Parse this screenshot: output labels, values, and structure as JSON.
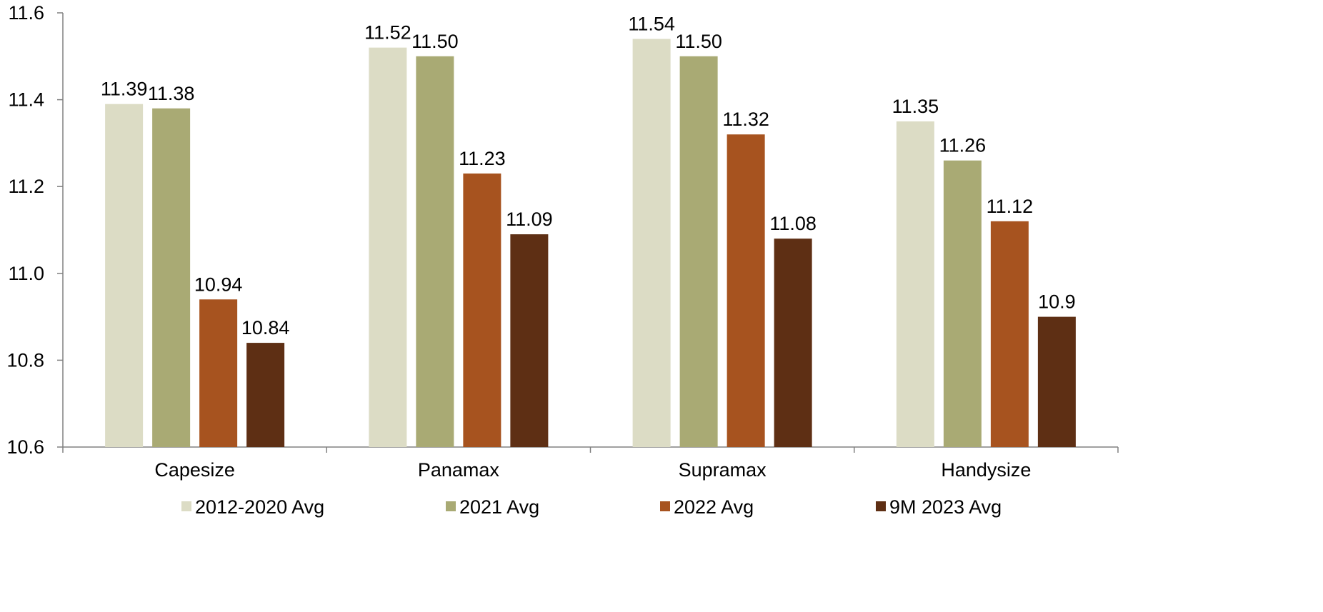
{
  "chart_data": {
    "type": "bar",
    "categories": [
      "Capesize",
      "Panamax",
      "Supramax",
      "Handysize"
    ],
    "series": [
      {
        "name": "2012-2020 Avg",
        "color": "#dcdcc5",
        "values": [
          11.39,
          11.52,
          11.54,
          11.35
        ],
        "labels": [
          "11.39",
          "11.52",
          "11.54",
          "11.35"
        ]
      },
      {
        "name": "2021 Avg",
        "color": "#a9aa74",
        "values": [
          11.38,
          11.5,
          11.5,
          11.26
        ],
        "labels": [
          "11.38",
          "11.50",
          "11.50",
          "11.26"
        ]
      },
      {
        "name": "2022 Avg",
        "color": "#a7531f",
        "values": [
          10.94,
          11.23,
          11.32,
          11.12
        ],
        "labels": [
          "10.94",
          "11.23",
          "11.32",
          "11.12"
        ]
      },
      {
        "name": "9M 2023 Avg",
        "color": "#5e2f14",
        "values": [
          10.84,
          11.09,
          11.08,
          10.9
        ],
        "labels": [
          "10.84",
          "11.09",
          "11.08",
          "10.9"
        ]
      }
    ],
    "ylim": [
      10.6,
      11.6
    ],
    "yticks": [
      "10.6",
      "10.8",
      "11.0",
      "11.2",
      "11.4",
      "11.6"
    ],
    "grid": false,
    "legend_position": "bottom",
    "axis_color": "#808080"
  }
}
